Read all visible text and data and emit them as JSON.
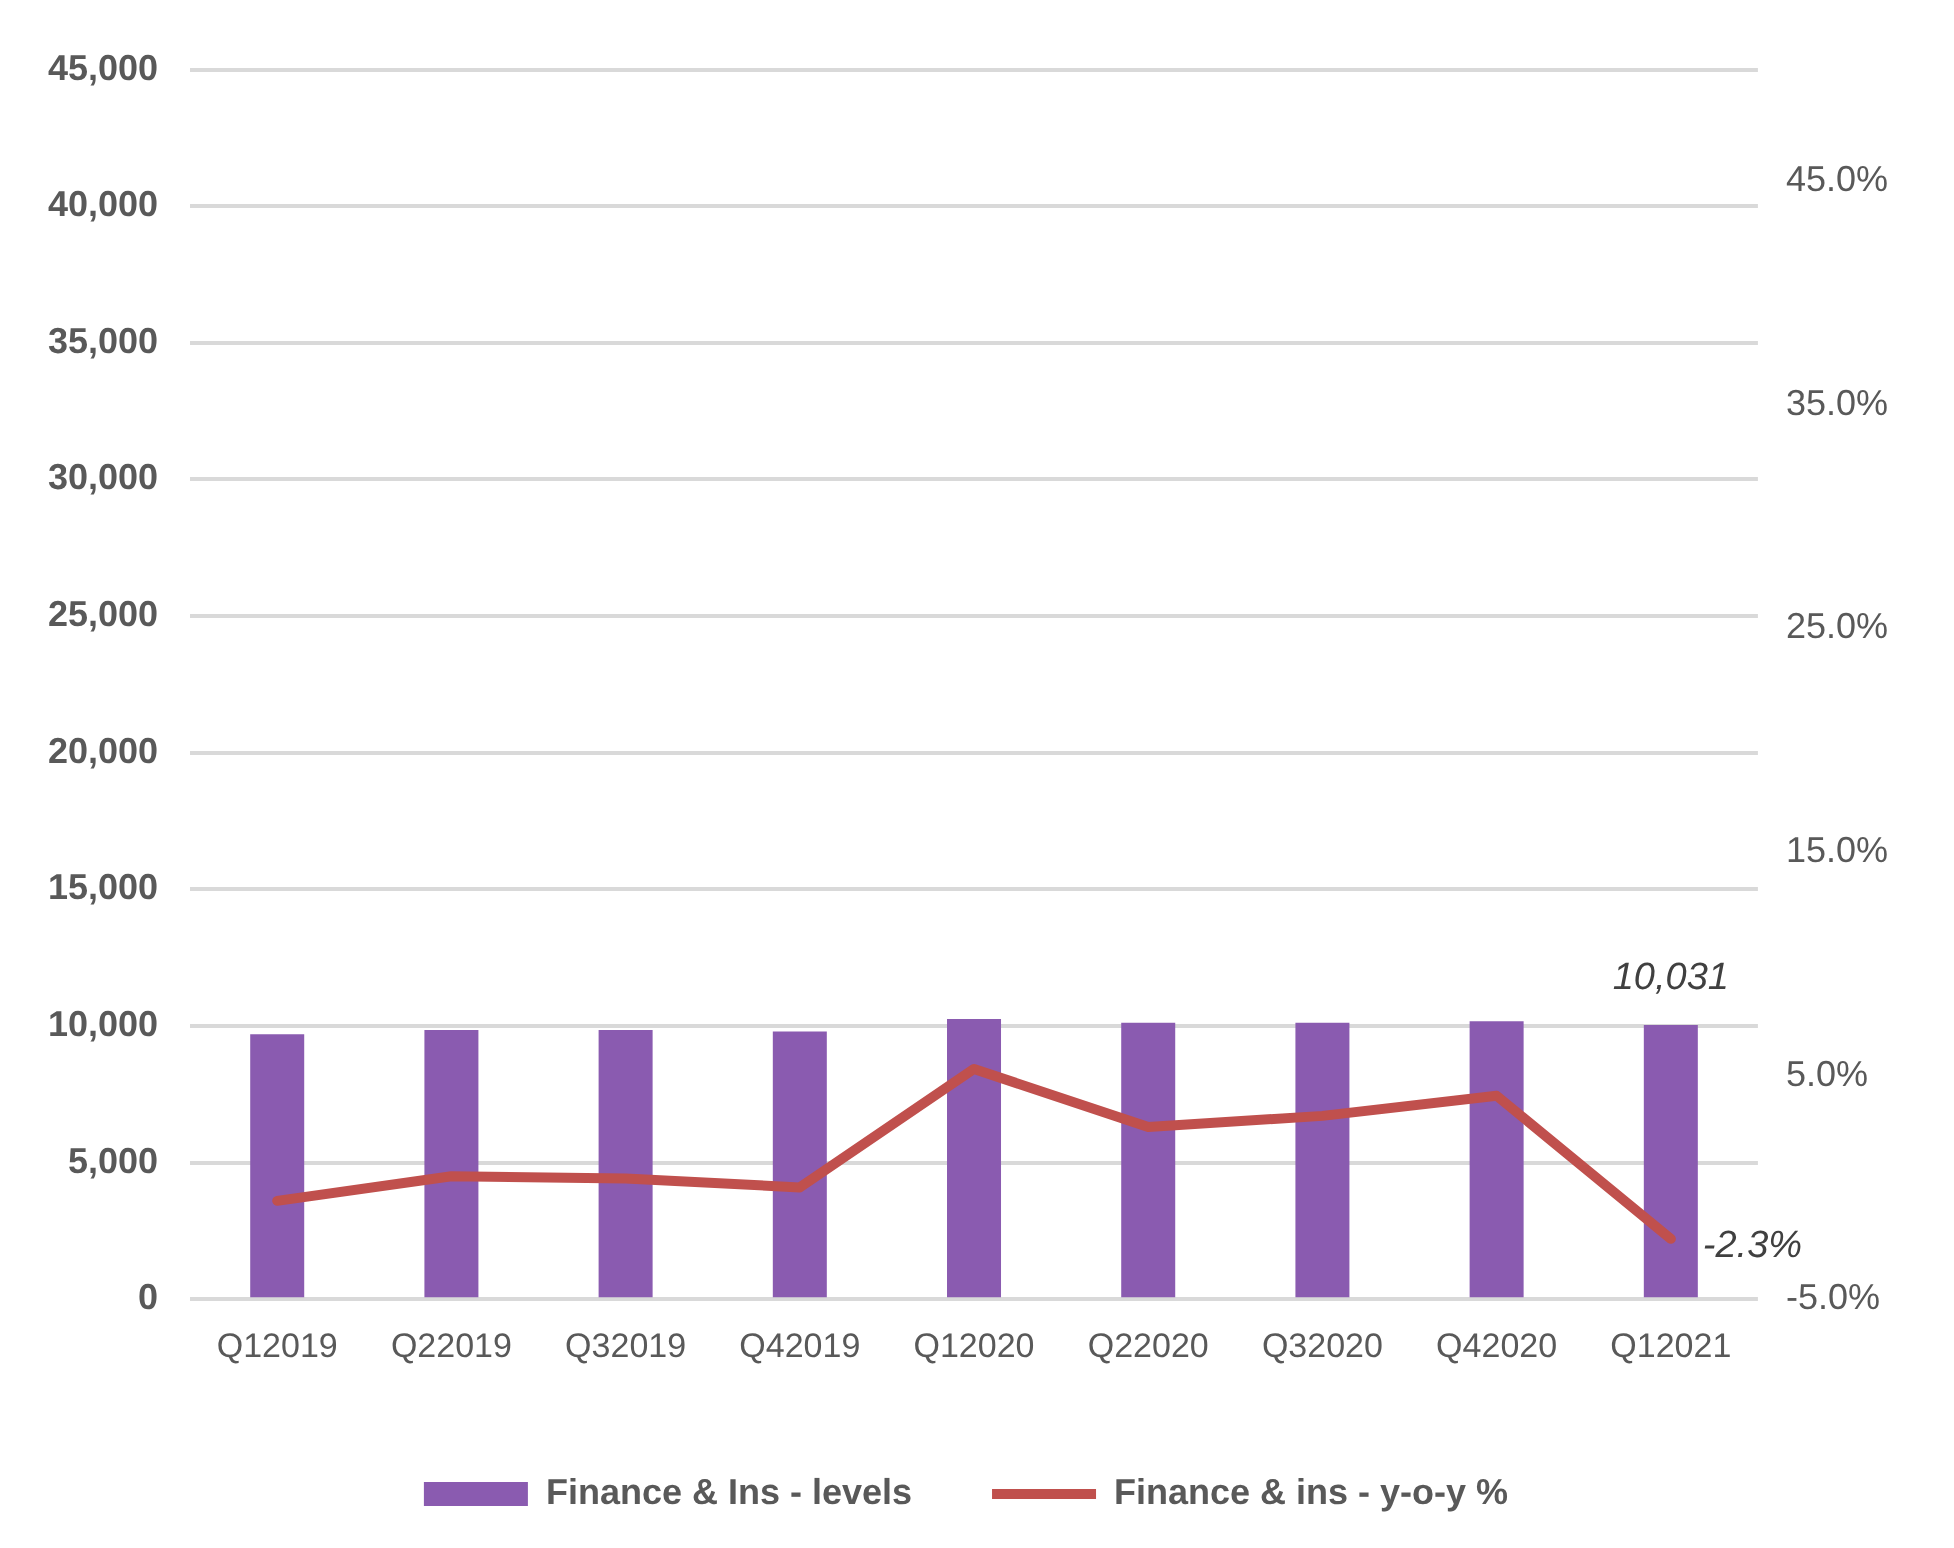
{
  "chart_data": {
    "type": "bar",
    "categories": [
      "Q12019",
      "Q22019",
      "Q32019",
      "Q42019",
      "Q12020",
      "Q22020",
      "Q32020",
      "Q42020",
      "Q12021"
    ],
    "series": [
      {
        "name": "Finance & Ins - levels",
        "color": "#8a5bb0",
        "values": [
          9700,
          9850,
          9850,
          9800,
          10250,
          10120,
          10120,
          10170,
          10031
        ],
        "value_labels": [
          null,
          null,
          null,
          null,
          null,
          null,
          null,
          null,
          "10,031"
        ]
      },
      {
        "name": "Finance & ins - y-o-y %",
        "type": "line",
        "axis": "y2",
        "color": "#c0504d",
        "values": [
          -0.6,
          0.5,
          0.4,
          0.0,
          5.3,
          2.7,
          3.2,
          4.1,
          -2.3
        ],
        "value_labels": [
          null,
          null,
          null,
          null,
          null,
          null,
          null,
          null,
          "-2.3%"
        ]
      }
    ],
    "ylim": [
      0,
      45000
    ],
    "yticks": [
      {
        "value": 0,
        "label": "0"
      },
      {
        "value": 5000,
        "label": "5,000"
      },
      {
        "value": 10000,
        "label": "10,000"
      },
      {
        "value": 15000,
        "label": "15,000"
      },
      {
        "value": 20000,
        "label": "20,000"
      },
      {
        "value": 25000,
        "label": "25,000"
      },
      {
        "value": 30000,
        "label": "30,000"
      },
      {
        "value": 35000,
        "label": "35,000"
      },
      {
        "value": 40000,
        "label": "40,000"
      },
      {
        "value": 45000,
        "label": "45,000"
      }
    ],
    "y2lim": [
      -5,
      50
    ],
    "y2ticks": [
      {
        "value": -5,
        "label": "-5.0%"
      },
      {
        "value": 5,
        "label": "5.0%"
      },
      {
        "value": 15,
        "label": "15.0%"
      },
      {
        "value": 25,
        "label": "25.0%"
      },
      {
        "value": 35,
        "label": "35.0%"
      },
      {
        "value": 45,
        "label": "45.0%"
      }
    ],
    "grid": "y",
    "legend": "bottom",
    "marker": "none",
    "line_style": "solid"
  }
}
